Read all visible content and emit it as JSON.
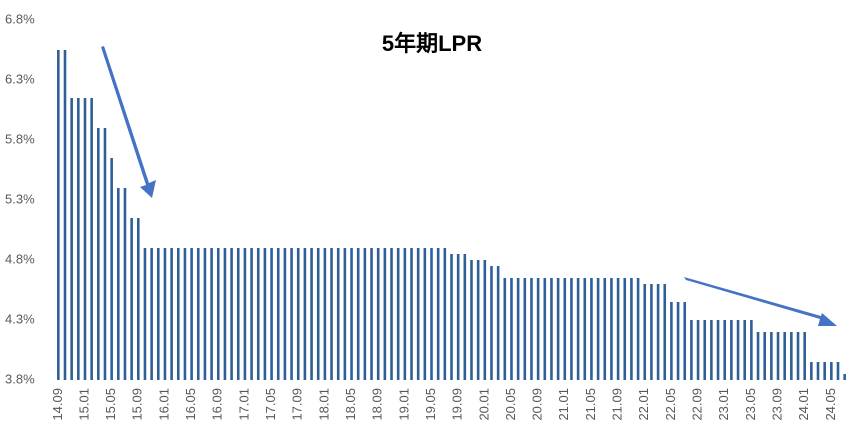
{
  "chart_data": {
    "type": "bar",
    "title": "5年期LPR",
    "categories": [
      "14.09",
      null,
      null,
      null,
      "15.01",
      null,
      null,
      null,
      "15.05",
      null,
      null,
      null,
      "15.09",
      null,
      null,
      null,
      "16.01",
      null,
      null,
      null,
      "16.05",
      null,
      null,
      null,
      "16.09",
      null,
      null,
      null,
      "17.01",
      null,
      null,
      null,
      "17.05",
      null,
      null,
      null,
      "17.09",
      null,
      null,
      null,
      "18.01",
      null,
      null,
      null,
      "18.05",
      null,
      null,
      null,
      "18.09",
      null,
      null,
      null,
      "19.01",
      null,
      null,
      null,
      "19.05",
      null,
      null,
      null,
      "19.09",
      null,
      null,
      null,
      "20.01",
      null,
      null,
      null,
      "20.05",
      null,
      null,
      null,
      "20.09",
      null,
      null,
      null,
      "21.01",
      null,
      null,
      null,
      "21.05",
      null,
      null,
      null,
      "21.09",
      null,
      null,
      null,
      "22.01",
      null,
      null,
      null,
      "22.05",
      null,
      null,
      null,
      "22.09",
      null,
      null,
      null,
      "23.01",
      null,
      null,
      null,
      "23.05",
      null,
      null,
      null,
      "23.09",
      null,
      null,
      null,
      "24.01",
      null,
      null,
      null,
      "24.05",
      null,
      null
    ],
    "values": [
      6.55,
      6.55,
      6.15,
      6.15,
      6.15,
      6.15,
      5.9,
      5.9,
      5.65,
      5.4,
      5.4,
      5.15,
      5.15,
      4.9,
      4.9,
      4.9,
      4.9,
      4.9,
      4.9,
      4.9,
      4.9,
      4.9,
      4.9,
      4.9,
      4.9,
      4.9,
      4.9,
      4.9,
      4.9,
      4.9,
      4.9,
      4.9,
      4.9,
      4.9,
      4.9,
      4.9,
      4.9,
      4.9,
      4.9,
      4.9,
      4.9,
      4.9,
      4.9,
      4.9,
      4.9,
      4.9,
      4.9,
      4.9,
      4.9,
      4.9,
      4.9,
      4.9,
      4.9,
      4.9,
      4.9,
      4.9,
      4.9,
      4.9,
      4.9,
      4.85,
      4.85,
      4.85,
      4.8,
      4.8,
      4.8,
      4.75,
      4.75,
      4.65,
      4.65,
      4.65,
      4.65,
      4.65,
      4.65,
      4.65,
      4.65,
      4.65,
      4.65,
      4.65,
      4.65,
      4.65,
      4.65,
      4.65,
      4.65,
      4.65,
      4.65,
      4.65,
      4.65,
      4.65,
      4.6,
      4.6,
      4.6,
      4.6,
      4.45,
      4.45,
      4.45,
      4.3,
      4.3,
      4.3,
      4.3,
      4.3,
      4.3,
      4.3,
      4.3,
      4.3,
      4.3,
      4.2,
      4.2,
      4.2,
      4.2,
      4.2,
      4.2,
      4.2,
      4.2,
      3.95,
      3.95,
      3.95,
      3.95,
      3.95,
      3.85
    ],
    "color": "#2f5f98",
    "ylim": [
      3.8,
      6.8
    ],
    "yticks": [
      {
        "value": 3.8,
        "label": "3.8%"
      },
      {
        "value": 4.3,
        "label": "4.3%"
      },
      {
        "value": 4.8,
        "label": "4.8%"
      },
      {
        "value": 5.3,
        "label": "5.3%"
      },
      {
        "value": 5.8,
        "label": "5.8%"
      },
      {
        "value": 6.3,
        "label": "6.3%"
      },
      {
        "value": 6.8,
        "label": "6.8%"
      }
    ],
    "grid": false
  }
}
